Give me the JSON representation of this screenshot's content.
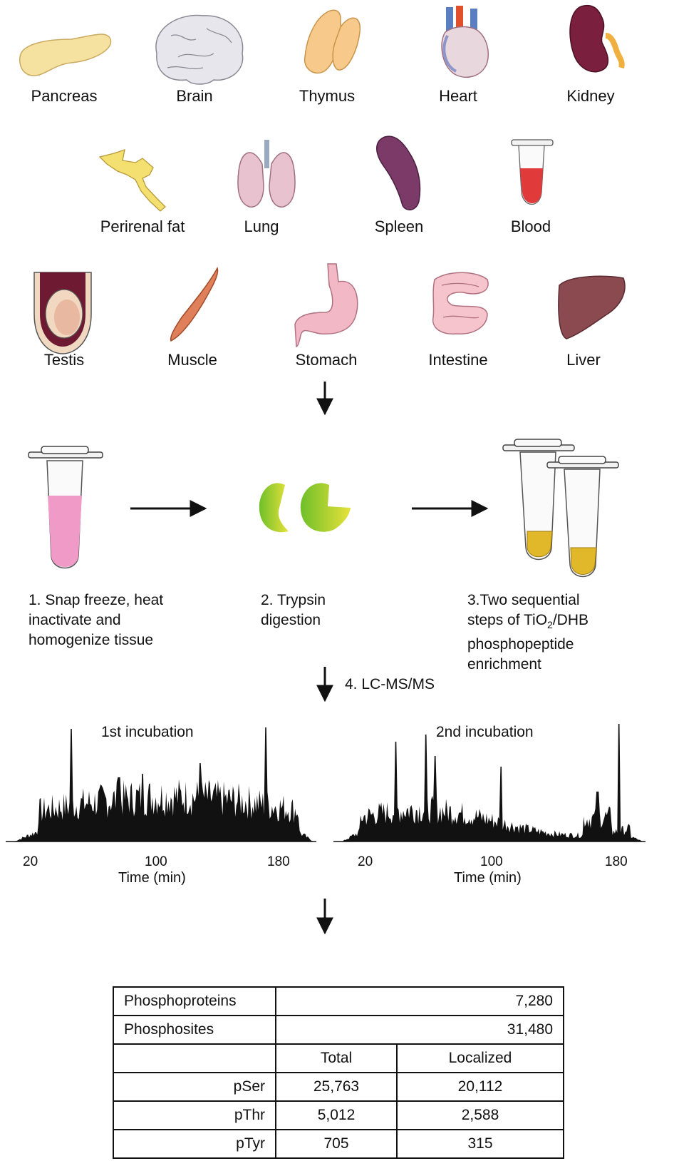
{
  "organs": {
    "row1": [
      "Pancreas",
      "Brain",
      "Thymus",
      "Heart",
      "Kidney"
    ],
    "row2": [
      "Perirenal fat",
      "Lung",
      "Spleen",
      "Blood"
    ],
    "row3": [
      "Testis",
      "Muscle",
      "Stomach",
      "Intestine",
      "Liver"
    ]
  },
  "steps": {
    "s1": [
      "1. Snap freeze, heat",
      "inactivate and",
      "homogenize tissue"
    ],
    "s2": [
      "2. Trypsin",
      "digestion"
    ],
    "s3_line1": "3.Two sequential",
    "s3_line2_pre": "steps of TiO",
    "s3_line2_sub": "2",
    "s3_line2_post": "/DHB",
    "s3_line3": "phosphopeptide",
    "s3_line4": "enrichment",
    "s4": "4. LC-MS/MS"
  },
  "traces": {
    "t1_title": "1st incubation",
    "t2_title": "2nd incubation",
    "xlabel": "Time (min)",
    "ticks": [
      "20",
      "100",
      "180"
    ]
  },
  "table": {
    "phosphoproteins_label": "Phosphoproteins",
    "phosphoproteins_value": "7,280",
    "phosphosites_label": "Phosphosites",
    "phosphosites_value": "31,480",
    "col_total": "Total",
    "col_localized": "Localized",
    "rows": [
      {
        "label": "pSer",
        "total": "25,763",
        "localized": "20,112"
      },
      {
        "label": "pThr",
        "total": "5,012",
        "localized": "2,588"
      },
      {
        "label": "pTyr",
        "total": "705",
        "localized": "315"
      }
    ]
  },
  "colors": {
    "pancreas": "#f5e2a0",
    "brain": "#e6e6ec",
    "thymus": "#f7c98a",
    "kidney": "#7a1f3d",
    "spleen": "#7b3a68",
    "liver": "#8a4a4f",
    "lung": "#e8c2cf",
    "stomach": "#f2b8c6",
    "muscle": "#e0805a",
    "blood": "#e03a3a",
    "tube_liquid": "#f09ac8",
    "beads": "#e0b82a",
    "trypsin_green": "#6fbf2a",
    "trypsin_yellow": "#e7e23a"
  }
}
